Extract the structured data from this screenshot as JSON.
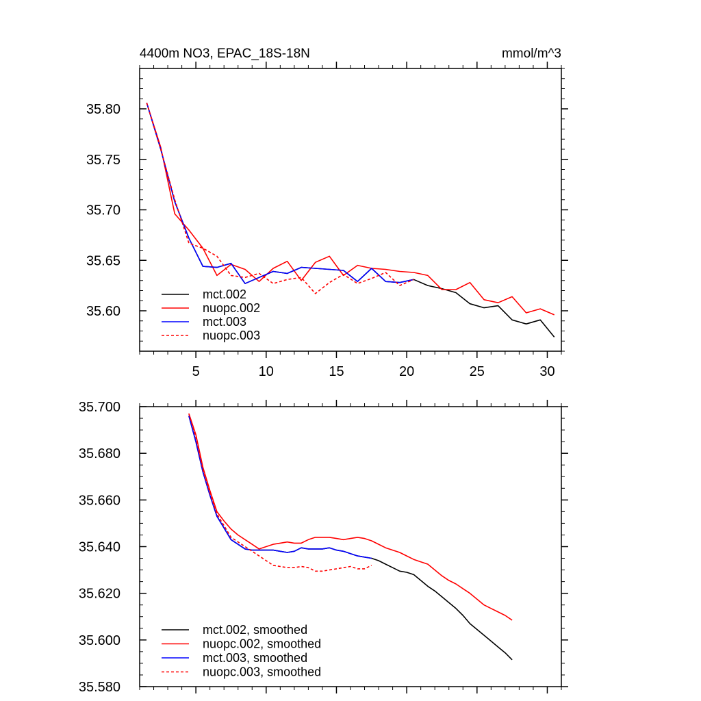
{
  "chart_data": [
    {
      "type": "line",
      "title_left": "4400m NO3, EPAC_18S-18N",
      "title_right": "mmol/m^3",
      "xlabel": "",
      "ylabel": "",
      "xlim": [
        1,
        31
      ],
      "ylim": [
        35.56,
        35.84
      ],
      "xticks": [
        5,
        10,
        15,
        20,
        25,
        30
      ],
      "xtick_labels": [
        "5",
        "10",
        "15",
        "20",
        "25",
        "30"
      ],
      "yticks": [
        35.6,
        35.65,
        35.7,
        35.75,
        35.8
      ],
      "ytick_labels": [
        "35.60",
        "35.65",
        "35.70",
        "35.75",
        "35.80"
      ],
      "legend_position": "bottom-left",
      "series": [
        {
          "name": "mct.002",
          "color": "#000000",
          "dash": "solid",
          "x": [
            1.5,
            2.5,
            3.5,
            4.5,
            5.5,
            6.5,
            7.5,
            8.5,
            9.5,
            10.5,
            11.5,
            12.5,
            13.5,
            14.5,
            15.5,
            16.5,
            17.5,
            18.5,
            19.5,
            20.5,
            21.5,
            22.5,
            23.5,
            24.5,
            25.5,
            26.5,
            27.5,
            28.5,
            29.5,
            30.5
          ],
          "values": [
            35.806,
            35.76,
            35.708,
            35.672,
            35.644,
            35.643,
            35.647,
            35.627,
            35.633,
            35.639,
            35.637,
            35.643,
            35.642,
            35.641,
            35.64,
            35.629,
            35.642,
            35.629,
            35.628,
            35.631,
            35.625,
            35.622,
            35.618,
            35.607,
            35.603,
            35.605,
            35.591,
            35.587,
            35.591,
            35.574
          ]
        },
        {
          "name": "nuopc.002",
          "color": "#ff0000",
          "dash": "solid",
          "x": [
            1.5,
            2.5,
            3.5,
            4.5,
            5.5,
            6.5,
            7.5,
            8.5,
            9.5,
            10.5,
            11.5,
            12.5,
            13.5,
            14.5,
            15.5,
            16.5,
            17.5,
            18.5,
            19.5,
            20.5,
            21.5,
            22.5,
            23.5,
            24.5,
            25.5,
            26.5,
            27.5,
            28.5,
            29.5,
            30.5
          ],
          "values": [
            35.806,
            35.762,
            35.696,
            35.68,
            35.662,
            35.635,
            35.646,
            35.641,
            35.629,
            35.642,
            35.649,
            35.63,
            35.648,
            35.654,
            35.635,
            35.645,
            35.642,
            35.641,
            35.639,
            35.638,
            35.635,
            35.621,
            35.621,
            35.628,
            35.611,
            35.608,
            35.614,
            35.598,
            35.602,
            35.596
          ]
        },
        {
          "name": "mct.003",
          "color": "#0000ff",
          "dash": "solid",
          "x": [
            1.5,
            2.5,
            3.5,
            4.5,
            5.5,
            6.5,
            7.5,
            8.5,
            9.5,
            10.5,
            11.5,
            12.5,
            13.5,
            14.5,
            15.5,
            16.5,
            17.5,
            18.5,
            19.5,
            20.5
          ],
          "values": [
            35.806,
            35.76,
            35.708,
            35.672,
            35.644,
            35.643,
            35.647,
            35.627,
            35.633,
            35.639,
            35.637,
            35.643,
            35.642,
            35.641,
            35.64,
            35.629,
            35.642,
            35.629,
            35.628,
            35.631
          ]
        },
        {
          "name": "nuopc.003",
          "color": "#ff0000",
          "dash": "dashed",
          "x": [
            1.5,
            2.5,
            3.5,
            4.5,
            5.5,
            6.5,
            7.5,
            8.5,
            9.5,
            10.5,
            11.5,
            12.5,
            13.5,
            14.5,
            15.5,
            16.5,
            17.5,
            18.5,
            19.5,
            20.5
          ],
          "values": [
            35.806,
            35.76,
            35.71,
            35.667,
            35.662,
            35.654,
            35.635,
            35.633,
            35.637,
            35.627,
            35.631,
            35.633,
            35.617,
            35.628,
            35.636,
            35.627,
            35.632,
            35.638,
            35.625,
            35.631
          ]
        }
      ]
    },
    {
      "type": "line",
      "title_left": "",
      "title_right": "",
      "xlabel": "",
      "ylabel": "",
      "xlim": [
        1,
        31
      ],
      "ylim": [
        35.58,
        35.7
      ],
      "xticks": [
        5,
        10,
        15,
        20,
        25,
        30
      ],
      "xtick_labels": [],
      "yticks": [
        35.58,
        35.6,
        35.62,
        35.64,
        35.66,
        35.68,
        35.7
      ],
      "ytick_labels": [
        "35.580",
        "35.600",
        "35.620",
        "35.640",
        "35.660",
        "35.680",
        "35.700"
      ],
      "legend_position": "bottom-left",
      "series": [
        {
          "name": "mct.002, smoothed",
          "color": "#000000",
          "dash": "solid",
          "x": [
            4.5,
            5,
            5.5,
            6,
            6.5,
            7,
            7.5,
            8,
            8.5,
            9,
            9.5,
            10,
            10.5,
            11,
            11.5,
            12,
            12.5,
            13,
            13.5,
            14,
            14.5,
            15,
            15.5,
            16,
            16.5,
            17,
            17.5,
            18,
            18.5,
            19,
            19.5,
            20,
            20.5,
            21,
            21.5,
            22,
            22.5,
            23,
            23.5,
            24,
            24.5,
            25,
            25.5,
            26,
            26.5,
            27,
            27.5
          ],
          "values": [
            35.696,
            35.685,
            35.672,
            35.662,
            35.653,
            35.648,
            35.643,
            35.641,
            35.639,
            35.6385,
            35.6385,
            35.6385,
            35.6385,
            35.638,
            35.6375,
            35.638,
            35.6395,
            35.639,
            35.639,
            35.639,
            35.6395,
            35.6385,
            35.638,
            35.637,
            35.636,
            35.6355,
            35.635,
            35.634,
            35.6325,
            35.631,
            35.6295,
            35.629,
            35.628,
            35.6255,
            35.623,
            35.621,
            35.6185,
            35.616,
            35.6135,
            35.6105,
            35.607,
            35.6045,
            35.602,
            35.5995,
            35.597,
            35.5945,
            35.5915
          ]
        },
        {
          "name": "nuopc.002, smoothed",
          "color": "#ff0000",
          "dash": "solid",
          "x": [
            4.5,
            5,
            5.5,
            6,
            6.5,
            7,
            7.5,
            8,
            8.5,
            9,
            9.5,
            10,
            10.5,
            11,
            11.5,
            12,
            12.5,
            13,
            13.5,
            14,
            14.5,
            15,
            15.5,
            16,
            16.5,
            17,
            17.5,
            18,
            18.5,
            19,
            19.5,
            20,
            20.5,
            21,
            21.5,
            22,
            22.5,
            23,
            23.5,
            24,
            24.5,
            25,
            25.5,
            26,
            26.5,
            27,
            27.5
          ],
          "values": [
            35.697,
            35.688,
            35.674,
            35.664,
            35.655,
            35.651,
            35.6475,
            35.645,
            35.643,
            35.641,
            35.639,
            35.64,
            35.641,
            35.6415,
            35.642,
            35.6415,
            35.6415,
            35.643,
            35.644,
            35.644,
            35.644,
            35.6435,
            35.643,
            35.6435,
            35.644,
            35.6435,
            35.6425,
            35.641,
            35.6395,
            35.6385,
            35.6375,
            35.636,
            35.6345,
            35.6335,
            35.6325,
            35.63,
            35.6275,
            35.6255,
            35.624,
            35.622,
            35.62,
            35.6175,
            35.615,
            35.6135,
            35.612,
            35.6105,
            35.6085
          ]
        },
        {
          "name": "mct.003, smoothed",
          "color": "#0000ff",
          "dash": "solid",
          "x": [
            4.5,
            5,
            5.5,
            6,
            6.5,
            7,
            7.5,
            8,
            8.5,
            9,
            9.5,
            10,
            10.5,
            11,
            11.5,
            12,
            12.5,
            13,
            13.5,
            14,
            14.5,
            15,
            15.5,
            16,
            16.5,
            17,
            17.5
          ],
          "values": [
            35.696,
            35.685,
            35.672,
            35.662,
            35.653,
            35.648,
            35.643,
            35.641,
            35.639,
            35.6385,
            35.6385,
            35.6385,
            35.6385,
            35.638,
            35.6375,
            35.638,
            35.6395,
            35.639,
            35.639,
            35.639,
            35.6395,
            35.6385,
            35.638,
            35.637,
            35.636,
            35.6355,
            35.635
          ]
        },
        {
          "name": "nuopc.003, smoothed",
          "color": "#ff0000",
          "dash": "dashed",
          "x": [
            4.5,
            5,
            5.5,
            6,
            6.5,
            7,
            7.5,
            8,
            8.5,
            9,
            9.5,
            10,
            10.5,
            11,
            11.5,
            12,
            12.5,
            13,
            13.5,
            14,
            14.5,
            15,
            15.5,
            16,
            16.5,
            17,
            17.5
          ],
          "values": [
            35.697,
            35.687,
            35.673,
            35.663,
            35.654,
            35.649,
            35.644,
            35.642,
            35.64,
            35.638,
            35.636,
            35.634,
            35.632,
            35.6315,
            35.631,
            35.631,
            35.6315,
            35.631,
            35.6295,
            35.6295,
            35.63,
            35.6305,
            35.631,
            35.6315,
            35.6305,
            35.6305,
            35.632
          ]
        }
      ]
    }
  ]
}
